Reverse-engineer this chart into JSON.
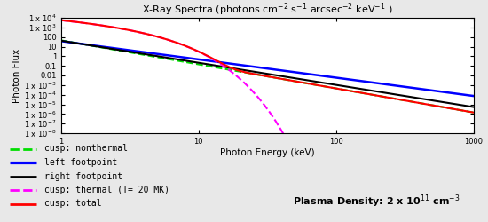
{
  "title": "X-Ray Spectra (photons cm$^{-2}$ s$^{-1}$ arcsec$^{-2}$ keV$^{-1}$ )",
  "xlabel": "Photon Energy (keV)",
  "ylabel": "Photon Flux",
  "xlim": [
    1,
    1000
  ],
  "ylim": [
    1e-08,
    10000.0
  ],
  "yticks": [
    1e-08,
    1e-07,
    1e-06,
    1e-05,
    0.0001,
    0.001,
    0.01,
    0.1,
    1,
    10,
    100,
    1000,
    10000
  ],
  "ytick_labels": [
    "1 x 10$^{-8}$",
    "1 x 10$^{-7}$",
    "1 x 10$^{-6}$",
    "1 x 10$^{-5}$",
    "1 x 10$^{-4}$",
    "1 x 10$^{-3}$",
    "0.01",
    "0.1",
    "1",
    "10",
    "100",
    "1 x 10$^{3}$",
    "1 x 10$^{4}$"
  ],
  "xticks": [
    1,
    10,
    100,
    1000
  ],
  "xtick_labels": [
    "1",
    "10",
    "100",
    "1000"
  ],
  "legend_items": [
    {
      "label": "cusp: nonthermal",
      "color": "#00dd00",
      "linestyle": "--",
      "linewidth": 1.5
    },
    {
      "label": "left footpoint",
      "color": "blue",
      "linestyle": "-",
      "linewidth": 1.8
    },
    {
      "label": "right footpoint",
      "color": "black",
      "linestyle": "-",
      "linewidth": 1.5
    },
    {
      "label": "cusp: thermal (T= 20 MK)",
      "color": "magenta",
      "linestyle": "--",
      "linewidth": 1.5
    },
    {
      "label": "cusp: total",
      "color": "red",
      "linestyle": "-",
      "linewidth": 1.5
    }
  ],
  "plasma_density_text": "Plasma Density: 2 x 10$^{11}$ cm$^{-3}$",
  "background_color": "#e8e8e8",
  "plot_bg": "white",
  "title_fontsize": 8,
  "axis_label_fontsize": 7.5,
  "tick_fontsize": 6,
  "legend_fontsize": 7,
  "annotation_fontsize": 8
}
